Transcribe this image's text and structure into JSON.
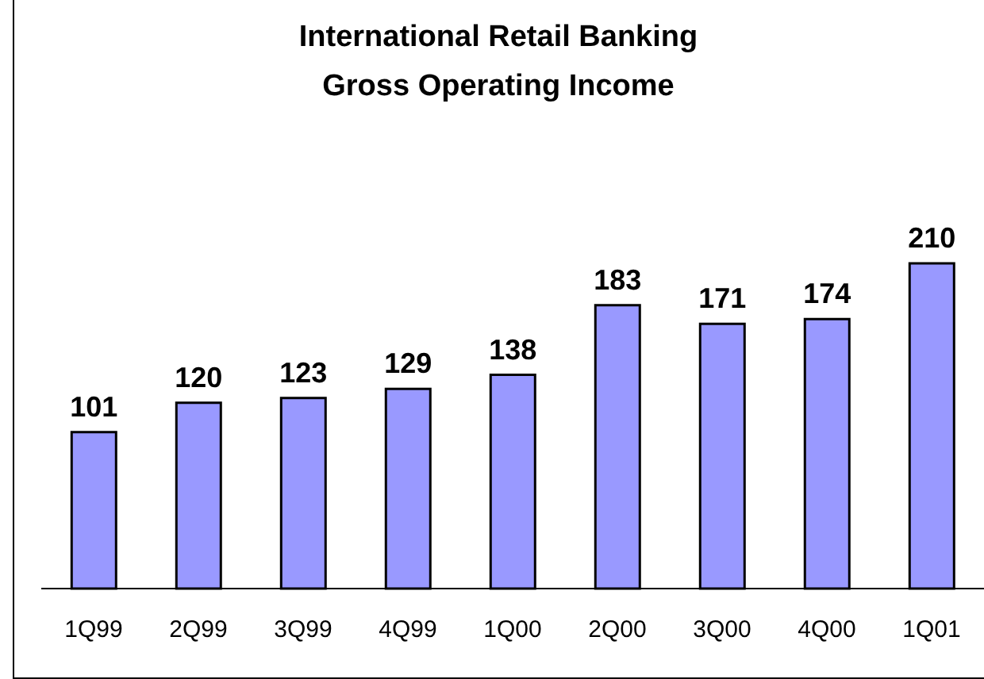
{
  "chart_data": {
    "type": "bar",
    "title": "International Retail Banking\nGross Operating Income",
    "categories": [
      "1Q99",
      "2Q99",
      "3Q99",
      "4Q99",
      "1Q00",
      "2Q00",
      "3Q00",
      "4Q00",
      "1Q01"
    ],
    "values": [
      101,
      120,
      123,
      129,
      138,
      183,
      171,
      174,
      210
    ],
    "color": "#9999ff",
    "data_labels": true,
    "grid": false,
    "legend": false
  }
}
